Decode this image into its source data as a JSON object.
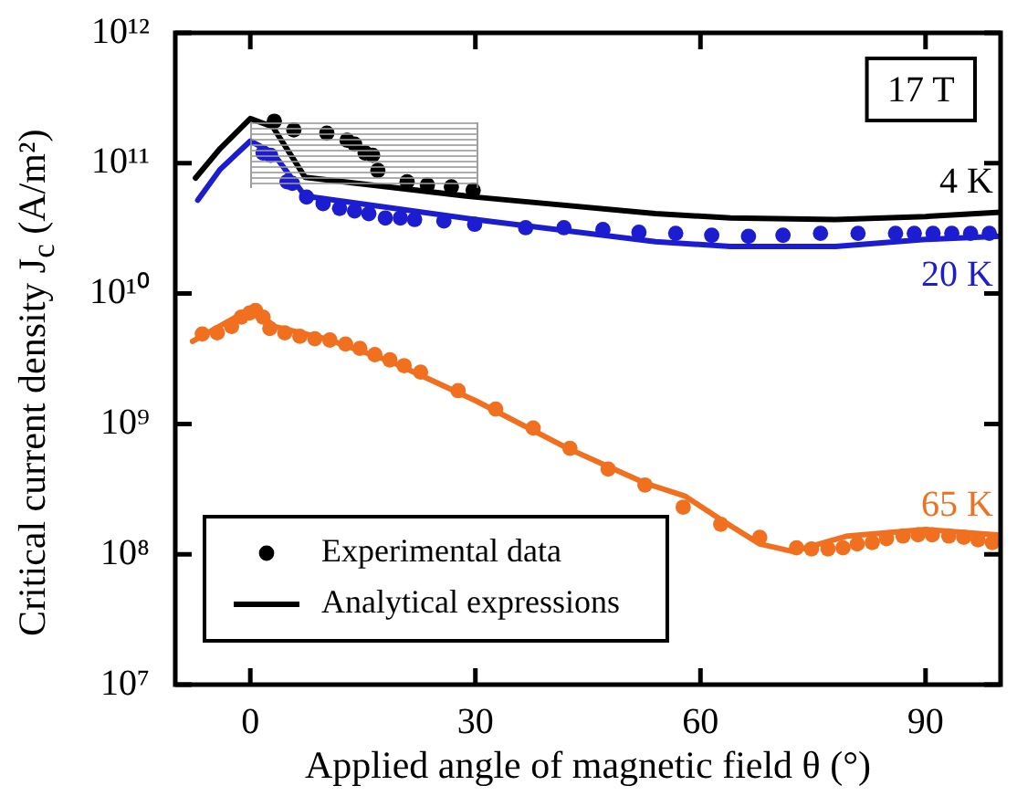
{
  "chart_data": {
    "type": "line",
    "xlabel": "Applied angle of magnetic field θ (°)",
    "ylabel": "Critical current density J$_{c}$ (A/m²)",
    "xlim": [
      -10,
      100
    ],
    "xticks": [
      0,
      30,
      60,
      90
    ],
    "ylim": [
      10000000.0,
      1000000000000.0
    ],
    "yticks": [
      {
        "value": 10000000.0,
        "label": "10⁷"
      },
      {
        "value": 100000000.0,
        "label": "10⁸"
      },
      {
        "value": 1000000000.0,
        "label": "10⁹"
      },
      {
        "value": 10000000000.0,
        "label": "10¹⁰"
      },
      {
        "value": 100000000000.0,
        "label": "10¹¹"
      },
      {
        "value": 1000000000000.0,
        "label": "10¹²"
      }
    ],
    "log": true,
    "legend": "bottom left",
    "annotations": [
      "17 T",
      "4 K",
      "20 K",
      "65 K"
    ],
    "series": [
      {
        "name": "Experimental data",
        "type": "scatter",
        "marker": "circle",
        "color": "#000000",
        "x": [
          3.2,
          5.8,
          10.2,
          12.9,
          13.9,
          15.3,
          16.3,
          17.0,
          20.9,
          23.6,
          26.8,
          29.7
        ],
        "values": [
          210000000000.0,
          180000000000.0,
          170000000000.0,
          150000000000.0,
          140000000000.0,
          120000000000.0,
          115000000000.0,
          88000000000.0,
          72000000000.0,
          68000000000.0,
          66000000000.0,
          62000000000.0
        ]
      },
      {
        "type": "scatter",
        "marker": "circle",
        "color": "#1c1cd0",
        "x": [
          1.7,
          2.7,
          4.9,
          5.6,
          7.5,
          9.7,
          11.9,
          13.9,
          15.8,
          18,
          20,
          21.9,
          25.8,
          29.9,
          36.7,
          41.8,
          47,
          51.8,
          56.7,
          61.5,
          66.4,
          71,
          76,
          81,
          86,
          88.5,
          91,
          93.5,
          96,
          98.5
        ],
        "values": [
          120000000000.0,
          115000000000.0,
          72000000000.0,
          70000000000.0,
          55000000000.0,
          49000000000.0,
          45000000000.0,
          43000000000.0,
          41000000000.0,
          38000000000.0,
          38000000000.0,
          37000000000.0,
          36000000000.0,
          34000000000.0,
          32000000000.0,
          32000000000.0,
          31000000000.0,
          29500000000.0,
          29000000000.0,
          28000000000.0,
          27500000000.0,
          28000000000.0,
          29000000000.0,
          29000000000.0,
          29000000000.0,
          29000000000.0,
          29000000000.0,
          29000000000.0,
          29000000000.0,
          29000000000.0
        ]
      },
      {
        "type": "scatter",
        "marker": "circle",
        "color": "#f07020",
        "x": [
          -6.4,
          -4.4,
          -2.5,
          -1.2,
          -0.1,
          0.7,
          1.7,
          2.6,
          4.6,
          6.6,
          8.6,
          10.6,
          12.7,
          14.6,
          16.6,
          18.6,
          20.5,
          22.7,
          27.7,
          32.7,
          37.7,
          42.6,
          47.7,
          52.6,
          57.7,
          62.7,
          67.9,
          72.8,
          74.8,
          77.0,
          79.0,
          80.9,
          82.9,
          84.8,
          87.0,
          89.0,
          90.9,
          93.1,
          95.1,
          97.0,
          98.9
        ],
        "values": [
          4900000000.0,
          5000000000.0,
          5600000000.0,
          6600000000.0,
          7100000000.0,
          7400000000.0,
          6600000000.0,
          5400000000.0,
          5000000000.0,
          4700000000.0,
          4500000000.0,
          4400000000.0,
          4100000000.0,
          3800000000.0,
          3400000000.0,
          3100000000.0,
          2800000000.0,
          2500000000.0,
          1800000000.0,
          1300000000.0,
          930000000.0,
          650000000.0,
          450000000.0,
          340000000.0,
          230000000.0,
          170000000.0,
          135000000.0,
          112000000.0,
          110000000.0,
          110000000.0,
          112000000.0,
          120000000.0,
          123000000.0,
          132000000.0,
          138000000.0,
          141000000.0,
          141000000.0,
          138000000.0,
          135000000.0,
          129000000.0,
          123000000.0
        ]
      },
      {
        "name": "Analytical expressions",
        "marker": "none",
        "color": "#000000",
        "x": [
          -7.3,
          -4,
          0,
          3,
          7.3,
          30,
          54,
          64,
          78,
          90,
          100
        ],
        "values": [
          77000000000.0,
          130000000000.0,
          220000000000.0,
          190000000000.0,
          78000000000.0,
          55000000000.0,
          41000000000.0,
          38000000000.0,
          37000000000.0,
          39000000000.0,
          42000000000.0
        ]
      },
      {
        "marker": "none",
        "color": "#1c1cd0",
        "x": [
          -7,
          -4,
          0,
          3,
          7.3,
          30,
          54,
          64,
          78,
          90,
          100
        ],
        "values": [
          52000000000.0,
          90000000000.0,
          148000000000.0,
          120000000000.0,
          56000000000.0,
          37000000000.0,
          25000000000.0,
          23000000000.0,
          23000000000.0,
          26000000000.0,
          27500000000.0
        ]
      },
      {
        "marker": "none",
        "color": "#f07020",
        "x": [
          -7.7,
          0.3,
          3.2,
          10.1,
          18.8,
          30.1,
          42.3,
          52.7,
          57.9,
          63,
          67.9,
          72.3,
          79.6,
          90,
          100
        ],
        "values": [
          4300000000.0,
          7800000000.0,
          5600000000.0,
          4500000000.0,
          3000000000.0,
          1500000000.0,
          650000000.0,
          350000000.0,
          280000000.0,
          180000000.0,
          120000000.0,
          105000000.0,
          138000000.0,
          155000000.0,
          140000000.0
        ]
      }
    ]
  }
}
